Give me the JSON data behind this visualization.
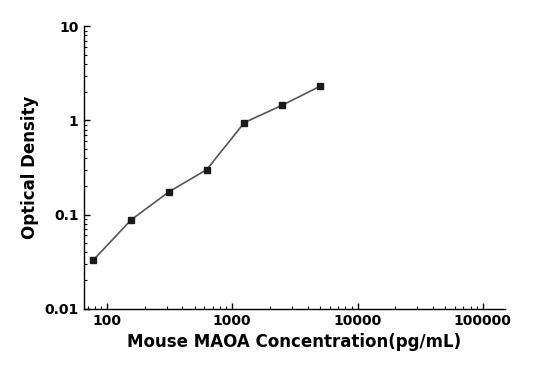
{
  "x": [
    78,
    156,
    313,
    625,
    1250,
    2500,
    5000
  ],
  "y": [
    0.033,
    0.088,
    0.175,
    0.3,
    0.95,
    1.45,
    2.3
  ],
  "xlabel": "Mouse MAOA Concentration(pg/mL)",
  "ylabel": "Optical Density",
  "xlim": [
    65,
    150000
  ],
  "ylim": [
    0.01,
    10
  ],
  "xticks": [
    100,
    1000,
    10000,
    100000
  ],
  "xtick_labels": [
    "100",
    "1000",
    "10000",
    "100000"
  ],
  "yticks": [
    0.01,
    0.1,
    1,
    10
  ],
  "ytick_labels": [
    "0.01",
    "0.1",
    "1",
    "10"
  ],
  "marker": "s",
  "marker_color": "#1a1a1a",
  "line_color": "#555555",
  "marker_size": 5,
  "line_width": 1.2,
  "bg_color": "#ffffff",
  "xlabel_fontsize": 12,
  "ylabel_fontsize": 12,
  "tick_labelsize": 10
}
